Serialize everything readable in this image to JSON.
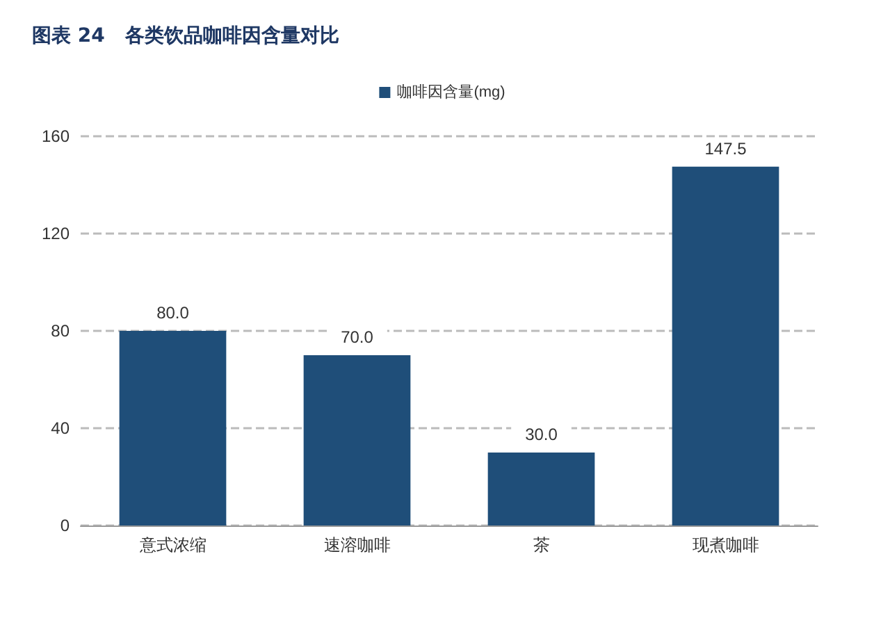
{
  "chart_data": {
    "type": "bar",
    "title": "图表 24   各类饮品咖啡因含量对比",
    "categories": [
      "意式浓缩",
      "速溶咖啡",
      "茶",
      "现煮咖啡"
    ],
    "series": [
      {
        "name": "咖啡因含量(mg)",
        "color": "#1f4e79",
        "values": [
          80.0,
          70.0,
          30.0,
          147.5
        ]
      }
    ],
    "value_labels": [
      "80.0",
      "70.0",
      "30.0",
      "147.5"
    ],
    "ylim": [
      0,
      160
    ],
    "yticks": [
      0,
      40,
      80,
      120,
      160
    ],
    "grid": "y",
    "legend": "top"
  }
}
